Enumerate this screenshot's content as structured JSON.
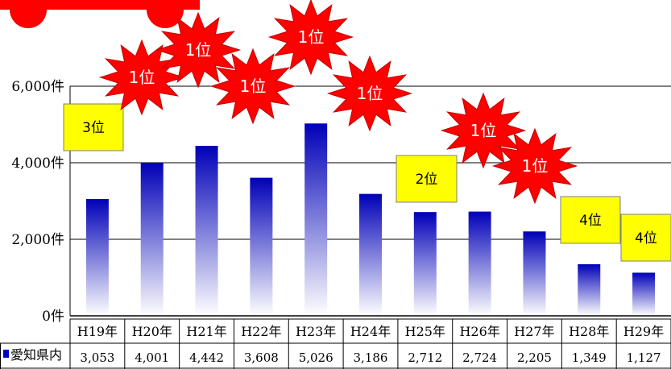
{
  "chart_data": {
    "type": "bar",
    "title": "",
    "xlabel": "",
    "ylabel": "",
    "categories": [
      "H19年",
      "H20年",
      "H21年",
      "H22年",
      "H23年",
      "H24年",
      "H25年",
      "H26年",
      "H27年",
      "H28年",
      "H29年"
    ],
    "series": [
      {
        "name": "愛知県内",
        "values": [
          3053,
          4001,
          4442,
          3608,
          5026,
          3186,
          2712,
          2724,
          2205,
          1349,
          1127
        ],
        "value_labels": [
          "3,053",
          "4,001",
          "4,442",
          "3,608",
          "5,026",
          "3,186",
          "2,712",
          "2,724",
          "2,205",
          "1,349",
          "1,127"
        ]
      }
    ],
    "ylim": [
      0,
      6000
    ],
    "yticks": [
      {
        "value": 0,
        "label": "0件"
      },
      {
        "value": 2000,
        "label": "2,000件"
      },
      {
        "value": 4000,
        "label": "4,000件"
      },
      {
        "value": 6000,
        "label": "6,000件"
      }
    ],
    "grid": true,
    "legend": "data-table-row",
    "rank_annotations": [
      {
        "category": "H19年",
        "label": "3位",
        "style": "box"
      },
      {
        "category": "H20年",
        "label": "1位",
        "style": "burst"
      },
      {
        "category": "H21年",
        "label": "1位",
        "style": "burst"
      },
      {
        "category": "H22年",
        "label": "1位",
        "style": "burst"
      },
      {
        "category": "H23年",
        "label": "1位",
        "style": "burst"
      },
      {
        "category": "H24年",
        "label": "1位",
        "style": "burst"
      },
      {
        "category": "H25年",
        "label": "2位",
        "style": "box"
      },
      {
        "category": "H26年",
        "label": "1位",
        "style": "burst"
      },
      {
        "category": "H27年",
        "label": "1位",
        "style": "burst"
      },
      {
        "category": "H28年",
        "label": "4位",
        "style": "box"
      },
      {
        "category": "H29年",
        "label": "4位",
        "style": "box"
      }
    ],
    "colors": {
      "bar_top": "#0000b8",
      "bar_bottom": "#ffffff",
      "burst": "#ff0000",
      "burst_edge": "#c00000",
      "box": "#ffff00",
      "legend_marker": "#0000cc",
      "header_shape": "#ff0000"
    }
  }
}
